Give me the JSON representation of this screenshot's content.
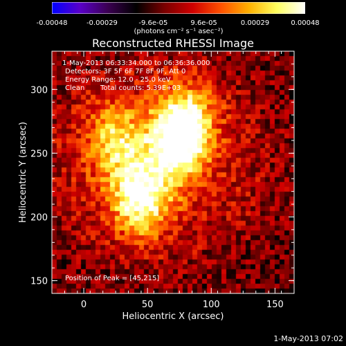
{
  "colorbar": {
    "ticks": [
      "-0.00048",
      "-0.00029",
      "-9.6e-05",
      "9.6e-05",
      "0.00029",
      "0.00048"
    ],
    "tick_values": [
      -0.00048,
      -0.00029,
      -9.6e-05,
      9.6e-05,
      0.00029,
      0.00048
    ],
    "units": "(photons cm⁻² s⁻¹ asec⁻²)",
    "colors": [
      "#0000ff",
      "#5a00c8",
      "#3a0050",
      "#000000",
      "#7a0000",
      "#d00000",
      "#ff5000",
      "#ffb000",
      "#ffff60",
      "#ffffff"
    ]
  },
  "title": "Reconstructed RHESSI Image",
  "annotations": {
    "time_range": "1-May-2013 06:33:34.000 to 06:36:36.000",
    "detectors": "Detectors: 3F 5F 6F 7F 8F 9F, Att 0",
    "energy": "Energy Range: 12.0 - 25.0 keV",
    "method": "Clean",
    "counts": "Total counts: 5.39E+03",
    "peak": "Position of Peak = [45,215]"
  },
  "timestamp": "1-May-2013 07:02",
  "chart_data": {
    "type": "heatmap",
    "title": "Reconstructed RHESSI Image",
    "xlabel": "Heliocentric X (arcsec)",
    "ylabel": "Heliocentric Y (arcsec)",
    "xlim": [
      -25,
      165
    ],
    "ylim": [
      140,
      330
    ],
    "xticks": [
      0,
      50,
      100,
      150
    ],
    "yticks": [
      150,
      200,
      250,
      300
    ],
    "xtick_labels": [
      "0",
      "50",
      "100",
      "150"
    ],
    "ytick_labels": [
      "150",
      "200",
      "250",
      "300"
    ],
    "colorbar_range": [
      -0.00048,
      0.00048
    ],
    "peak_position": [
      45,
      215
    ],
    "sources": [
      {
        "x": 45,
        "y": 215,
        "intensity": 0.00048
      },
      {
        "x": 80,
        "y": 275,
        "intensity": 0.0004
      },
      {
        "x": 72,
        "y": 255,
        "intensity": 0.00036
      },
      {
        "x": 25,
        "y": 260,
        "intensity": 0.0003
      }
    ]
  }
}
